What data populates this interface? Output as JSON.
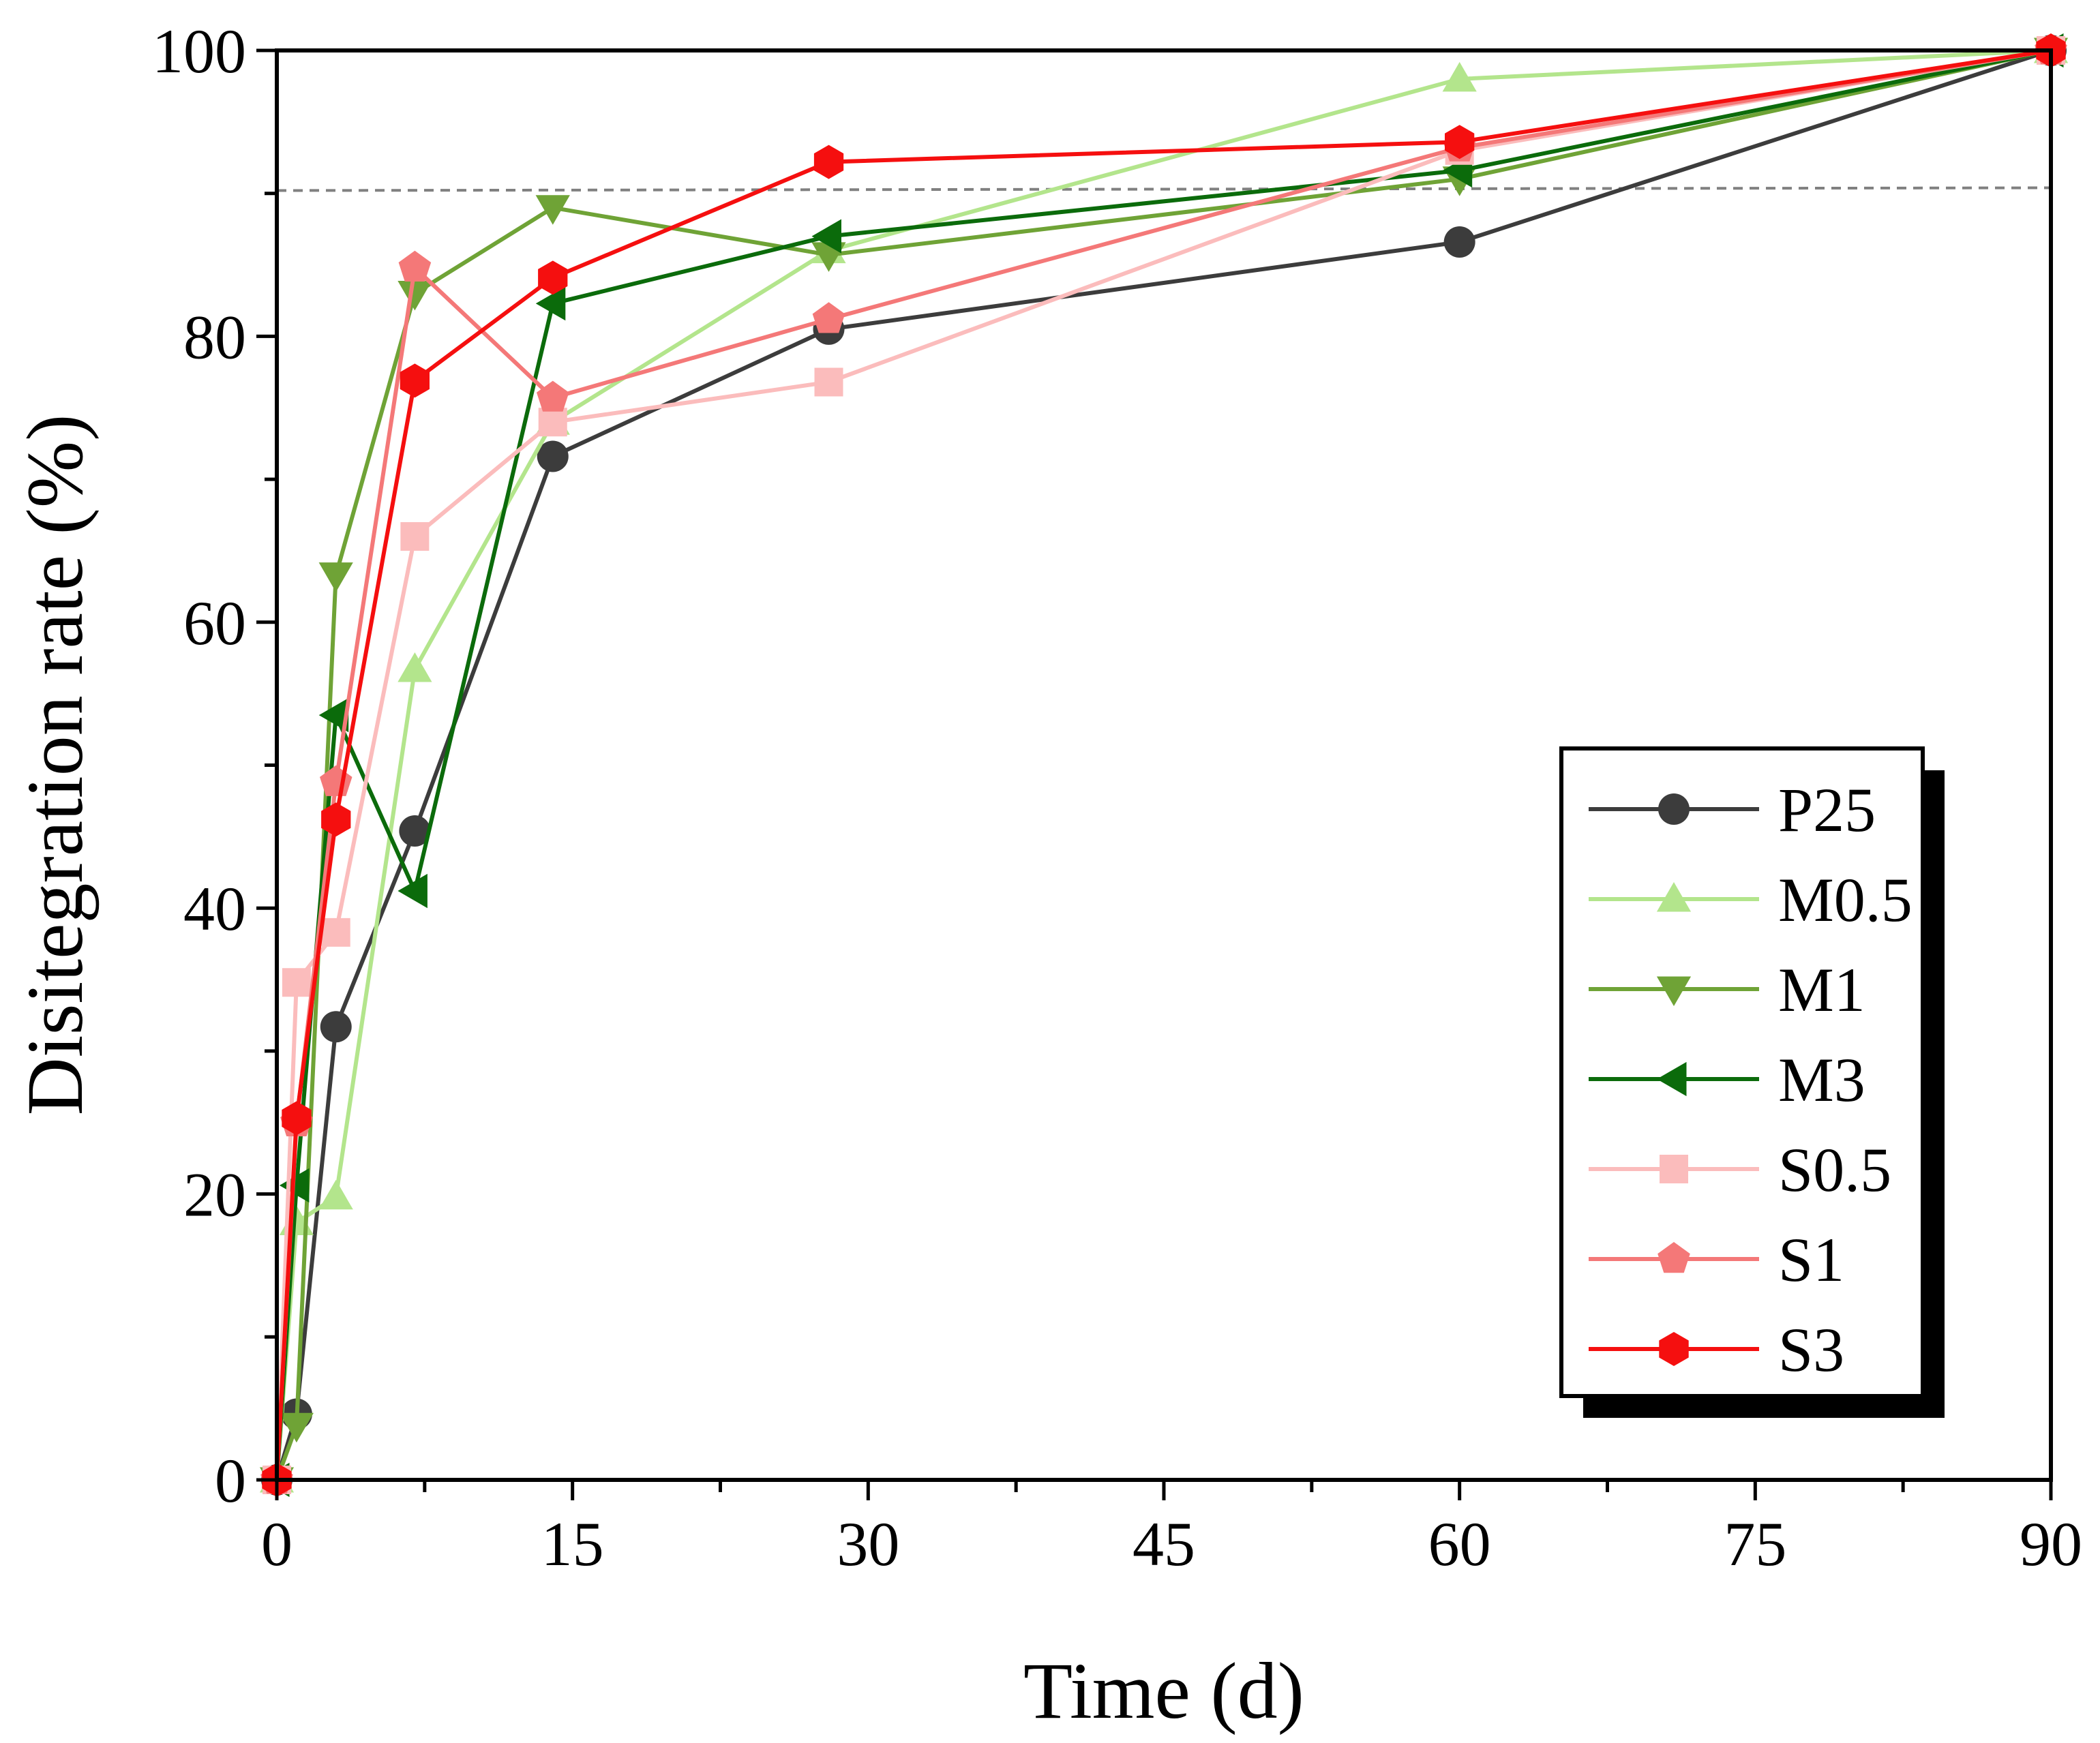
{
  "chart_data": {
    "type": "line",
    "title": "",
    "xlabel": "Time (d)",
    "ylabel": "Disitegration rate (%)",
    "xlim": [
      0,
      90
    ],
    "ylim": [
      0,
      100
    ],
    "xticks": [
      0,
      15,
      30,
      45,
      60,
      75,
      90
    ],
    "yticks": [
      0,
      20,
      40,
      60,
      80,
      100
    ],
    "x_tick_labels": [
      "0",
      "15",
      "30",
      "45",
      "60",
      "75",
      "90"
    ],
    "y_tick_labels": [
      "0",
      "20",
      "40",
      "60",
      "80",
      "100"
    ],
    "reference_line": {
      "y": 90.2,
      "style": "dashed",
      "color": "#808080"
    },
    "legend_position": "bottom-right",
    "series": [
      {
        "name": "P25",
        "color": "#3c3c3c",
        "marker": "circle",
        "x": [
          0,
          1,
          3,
          7,
          14,
          28,
          60,
          90
        ],
        "y": [
          0,
          4.6,
          31.7,
          45.4,
          71.6,
          80.5,
          86.6,
          100
        ]
      },
      {
        "name": "M0.5",
        "color": "#b3e58c",
        "marker": "triangle-up",
        "x": [
          0,
          1,
          3,
          7,
          14,
          28,
          60,
          90
        ],
        "y": [
          0,
          18.0,
          19.8,
          56.7,
          74.0,
          86.0,
          98.0,
          100
        ]
      },
      {
        "name": "M1",
        "color": "#6fa336",
        "marker": "triangle-down",
        "x": [
          0,
          1,
          3,
          7,
          14,
          28,
          60,
          90
        ],
        "y": [
          0,
          3.8,
          63.3,
          83.0,
          89.0,
          85.7,
          91.0,
          100
        ]
      },
      {
        "name": "M3",
        "color": "#0b6b0b",
        "marker": "triangle-left",
        "x": [
          0,
          1,
          3,
          7,
          14,
          28,
          60,
          90
        ],
        "y": [
          0,
          20.6,
          53.5,
          41.2,
          82.3,
          87.0,
          91.6,
          100
        ]
      },
      {
        "name": "S0.5",
        "color": "#fbbcbc",
        "marker": "square",
        "x": [
          0,
          1,
          3,
          7,
          14,
          28,
          60,
          90
        ],
        "y": [
          0,
          34.8,
          38.3,
          66.0,
          74.0,
          76.8,
          93.0,
          100
        ]
      },
      {
        "name": "S1",
        "color": "#f47878",
        "marker": "pentagon",
        "x": [
          0,
          1,
          3,
          7,
          14,
          28,
          60,
          90
        ],
        "y": [
          0,
          25.0,
          48.8,
          84.8,
          75.7,
          81.2,
          93.2,
          100
        ]
      },
      {
        "name": "S3",
        "color": "#f50f0f",
        "marker": "hexagon",
        "x": [
          0,
          1,
          3,
          7,
          14,
          28,
          60,
          90
        ],
        "y": [
          0,
          25.3,
          46.2,
          76.9,
          84.1,
          92.2,
          93.6,
          100
        ]
      }
    ]
  }
}
